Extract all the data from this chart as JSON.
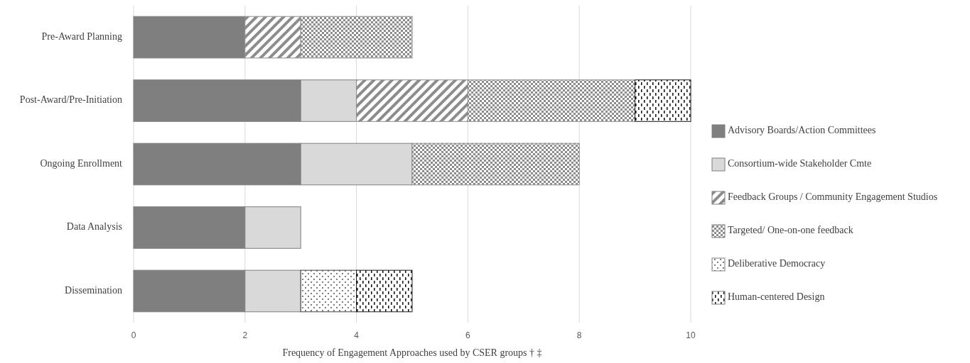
{
  "chart_data": {
    "type": "bar",
    "orientation": "horizontal",
    "stacked": true,
    "categories": [
      "Pre-Award Planning",
      "Post-Award/Pre-Initiation",
      "Ongoing Enrollment",
      "Data Analysis",
      "Dissemination"
    ],
    "series": [
      {
        "name": "Advisory Boards/Action Committees",
        "color": "#7f7f7f",
        "values": [
          2,
          3,
          3,
          2,
          2
        ]
      },
      {
        "name": "Consortium-wide Stakeholder Cmte",
        "color": "#d9d9d9",
        "values": [
          0,
          1,
          2,
          1,
          1
        ]
      },
      {
        "name": "Feedback Groups / Community Engagement Studios",
        "color": "#8c8c8c",
        "values": [
          1,
          2,
          0,
          0,
          0
        ]
      },
      {
        "name": "Targeted/ One-on-one feedback",
        "color": "#8c8c8c",
        "values": [
          2,
          3,
          3,
          0,
          0
        ]
      },
      {
        "name": "Deliberative Democracy",
        "color": "#404040",
        "values": [
          0,
          0,
          0,
          0,
          1
        ]
      },
      {
        "name": "Human-centered Design",
        "color": "#1a1a1a",
        "values": [
          0,
          1,
          0,
          0,
          1
        ]
      }
    ],
    "xlim": [
      0,
      10
    ],
    "xticks": [
      0,
      2,
      4,
      6,
      8,
      10
    ],
    "grid": "x",
    "legend": "right",
    "xlabel": "Frequency of Engagement Approaches used by CSER groups † ‡"
  }
}
